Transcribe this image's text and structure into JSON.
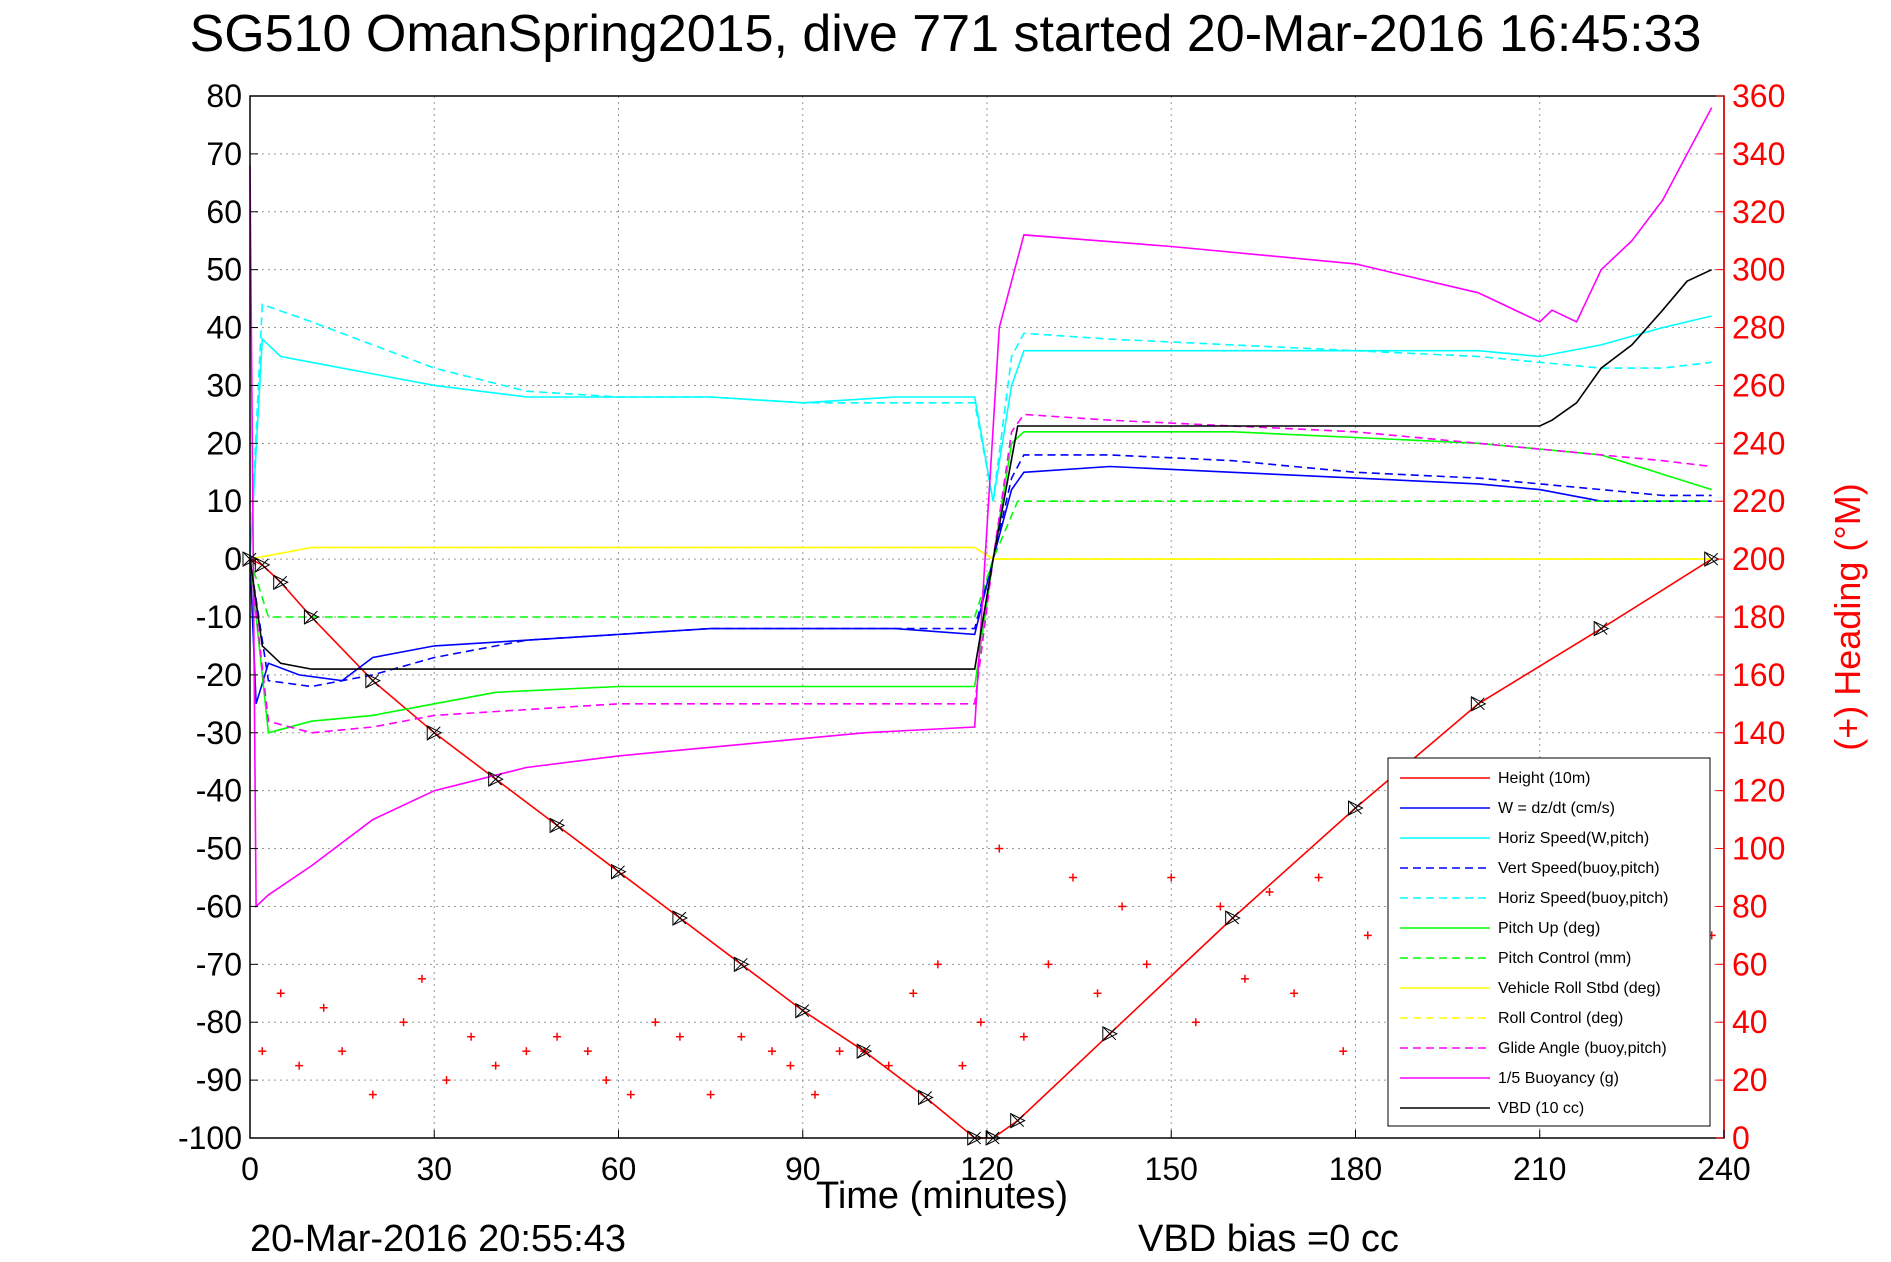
{
  "title": "SG510 OmanSpring2015, dive 771 started 20-Mar-2016 16:45:33",
  "footer": {
    "timestamp": "20-Mar-2016 20:55:43",
    "vbd_bias": "VBD bias =0 cc"
  },
  "chart_data": {
    "type": "line",
    "xlabel": "Time (minutes)",
    "ylabel_right": "(+) Heading (°M)",
    "xlim": [
      0,
      240
    ],
    "ylim": [
      -100,
      80
    ],
    "ylim_right": [
      0,
      360
    ],
    "xticks": [
      0,
      30,
      60,
      90,
      120,
      150,
      180,
      210,
      240
    ],
    "yticks": [
      80,
      70,
      60,
      50,
      40,
      30,
      20,
      10,
      0,
      -10,
      -20,
      -30,
      -40,
      -50,
      -60,
      -70,
      -80,
      -90,
      -100
    ],
    "yticks_right": [
      360,
      340,
      320,
      300,
      280,
      260,
      240,
      220,
      200,
      180,
      160,
      140,
      120,
      100,
      80,
      60,
      40,
      20,
      0
    ],
    "grid": true,
    "legend_position": "bottom-right",
    "colors": {
      "height": "#ff0000",
      "w": "#0000ff",
      "horiz_speed": "#00ffff",
      "pitch": "#00ff00",
      "roll": "#ffff00",
      "glide": "#ff00ff",
      "buoyancy": "#ff00ff",
      "vbd": "#000000",
      "heading": "#ff0000"
    },
    "series": [
      {
        "name": "Height (10m)",
        "color": "#ff0000",
        "style": "solid",
        "x": [
          0,
          2,
          5,
          10,
          20,
          30,
          40,
          50,
          60,
          70,
          80,
          90,
          100,
          110,
          118,
          121,
          125,
          140,
          160,
          180,
          200,
          220,
          238
        ],
        "y": [
          0,
          -1,
          -4,
          -10,
          -21,
          -30,
          -38,
          -46,
          -54,
          -62,
          -70,
          -78,
          -85,
          -93,
          -100,
          -100,
          -97,
          -82,
          -62,
          -43,
          -25,
          -12,
          0
        ]
      },
      {
        "name": "W = dz/dt (cm/s)",
        "color": "#0000ff",
        "style": "solid",
        "x": [
          0,
          1,
          3,
          8,
          15,
          20,
          30,
          45,
          60,
          75,
          90,
          105,
          118,
          121,
          124,
          126,
          140,
          160,
          180,
          200,
          210,
          220,
          230,
          238
        ],
        "y": [
          0,
          -25,
          -18,
          -20,
          -21,
          -17,
          -15,
          -14,
          -13,
          -12,
          -12,
          -12,
          -13,
          0,
          12,
          15,
          16,
          15,
          14,
          13,
          12,
          10,
          10,
          10
        ]
      },
      {
        "name": "Horiz Speed(W,pitch)",
        "color": "#00ffff",
        "style": "solid",
        "x": [
          0,
          2,
          5,
          10,
          20,
          30,
          45,
          60,
          75,
          90,
          105,
          118,
          121,
          124,
          126,
          140,
          160,
          180,
          200,
          210,
          220,
          230,
          238
        ],
        "y": [
          0,
          38,
          35,
          34,
          32,
          30,
          28,
          28,
          28,
          27,
          28,
          28,
          10,
          30,
          36,
          36,
          36,
          36,
          36,
          35,
          37,
          40,
          42
        ]
      },
      {
        "name": "Vert Speed(buoy,pitch)",
        "color": "#0000ff",
        "style": "dashed",
        "x": [
          0,
          3,
          10,
          20,
          30,
          45,
          60,
          75,
          90,
          105,
          118,
          121,
          124,
          126,
          140,
          160,
          180,
          200,
          210,
          220,
          230,
          238
        ],
        "y": [
          0,
          -21,
          -22,
          -20,
          -17,
          -14,
          -13,
          -12,
          -12,
          -12,
          -12,
          0,
          14,
          18,
          18,
          17,
          15,
          14,
          13,
          12,
          11,
          11
        ]
      },
      {
        "name": "Horiz Speed(buoy,pitch)",
        "color": "#00ffff",
        "style": "dashed",
        "x": [
          0,
          2,
          10,
          20,
          30,
          45,
          60,
          75,
          90,
          105,
          118,
          121,
          124,
          126,
          140,
          160,
          180,
          200,
          210,
          220,
          230,
          238
        ],
        "y": [
          0,
          44,
          41,
          37,
          33,
          29,
          28,
          28,
          27,
          27,
          27,
          10,
          35,
          39,
          38,
          37,
          36,
          35,
          34,
          33,
          33,
          34
        ]
      },
      {
        "name": "Pitch Up (deg)",
        "color": "#00ff00",
        "style": "solid",
        "x": [
          0,
          3,
          10,
          20,
          30,
          40,
          60,
          80,
          100,
          118,
          121,
          124,
          126,
          140,
          160,
          180,
          200,
          220,
          238
        ],
        "y": [
          0,
          -30,
          -28,
          -27,
          -25,
          -23,
          -22,
          -22,
          -22,
          -22,
          0,
          20,
          22,
          22,
          22,
          21,
          20,
          18,
          12
        ]
      },
      {
        "name": "Pitch Control (mm)",
        "color": "#00ff00",
        "style": "dashed",
        "x": [
          0,
          3,
          10,
          30,
          60,
          90,
          118,
          121,
          125,
          150,
          180,
          210,
          238
        ],
        "y": [
          0,
          -10,
          -10,
          -10,
          -10,
          -10,
          -10,
          0,
          10,
          10,
          10,
          10,
          10
        ]
      },
      {
        "name": "Vehicle Roll Stbd (deg)",
        "color": "#ffff00",
        "style": "solid",
        "x": [
          0,
          10,
          30,
          60,
          90,
          118,
          121,
          126,
          150,
          180,
          210,
          238
        ],
        "y": [
          0,
          2,
          2,
          2,
          2,
          2,
          0,
          0,
          0,
          0,
          0,
          0
        ]
      },
      {
        "name": "Roll Control (deg)",
        "color": "#ffff00",
        "style": "dashed",
        "x": [
          0,
          10,
          30,
          60,
          90,
          118,
          121,
          126,
          150,
          180,
          210,
          238
        ],
        "y": [
          0,
          2,
          2,
          2,
          2,
          2,
          0,
          0,
          0,
          0,
          0,
          0
        ]
      },
      {
        "name": "Glide Angle (buoy,pitch)",
        "color": "#ff00ff",
        "style": "dashed",
        "x": [
          0,
          3,
          10,
          20,
          30,
          45,
          60,
          75,
          90,
          105,
          118,
          121,
          124,
          126,
          140,
          160,
          180,
          200,
          210,
          220,
          230,
          238
        ],
        "y": [
          0,
          -28,
          -30,
          -29,
          -27,
          -26,
          -25,
          -25,
          -25,
          -25,
          -25,
          0,
          22,
          25,
          24,
          23,
          22,
          20,
          19,
          18,
          17,
          16
        ]
      },
      {
        "name": "1/5 Buoyancy (g)",
        "color": "#ff00ff",
        "style": "solid",
        "x": [
          0,
          1,
          3,
          10,
          20,
          30,
          45,
          60,
          80,
          100,
          118,
          122,
          126,
          150,
          180,
          200,
          210,
          212,
          216,
          220,
          225,
          230,
          235,
          238
        ],
        "y": [
          68,
          -60,
          -58,
          -53,
          -45,
          -40,
          -36,
          -34,
          -32,
          -30,
          -29,
          40,
          56,
          54,
          51,
          46,
          41,
          43,
          41,
          50,
          55,
          62,
          72,
          78
        ]
      },
      {
        "name": "VBD (10 cc)",
        "color": "#000000",
        "style": "solid",
        "x": [
          0,
          2,
          5,
          10,
          15,
          20,
          60,
          90,
          118,
          121,
          125,
          150,
          180,
          210,
          212,
          216,
          220,
          225,
          230,
          234,
          238
        ],
        "y": [
          0,
          -15,
          -18,
          -19,
          -19,
          -19,
          -19,
          -19,
          -19,
          0,
          23,
          23,
          23,
          23,
          24,
          27,
          33,
          37,
          43,
          48,
          50
        ]
      }
    ],
    "heading_points": {
      "name": "(+) Heading (°M)",
      "x": [
        2,
        5,
        8,
        12,
        15,
        20,
        25,
        28,
        32,
        36,
        40,
        45,
        50,
        55,
        58,
        62,
        66,
        70,
        75,
        80,
        85,
        88,
        92,
        96,
        100,
        104,
        108,
        112,
        116,
        119,
        122,
        126,
        130,
        134,
        138,
        142,
        146,
        150,
        154,
        158,
        162,
        166,
        170,
        174,
        178,
        182,
        186,
        190,
        194,
        198,
        202,
        206,
        210,
        214,
        218,
        222,
        226,
        230,
        234,
        238
      ],
      "y": [
        30,
        50,
        25,
        45,
        30,
        15,
        40,
        55,
        20,
        35,
        25,
        30,
        35,
        30,
        20,
        15,
        40,
        35,
        15,
        35,
        30,
        25,
        15,
        30,
        30,
        25,
        50,
        60,
        25,
        40,
        100,
        35,
        60,
        90,
        50,
        80,
        60,
        90,
        40,
        80,
        55,
        85,
        50,
        90,
        30,
        70,
        50,
        80,
        45,
        75,
        35,
        65,
        50,
        80,
        45,
        80,
        55,
        75,
        50,
        70
      ]
    }
  }
}
